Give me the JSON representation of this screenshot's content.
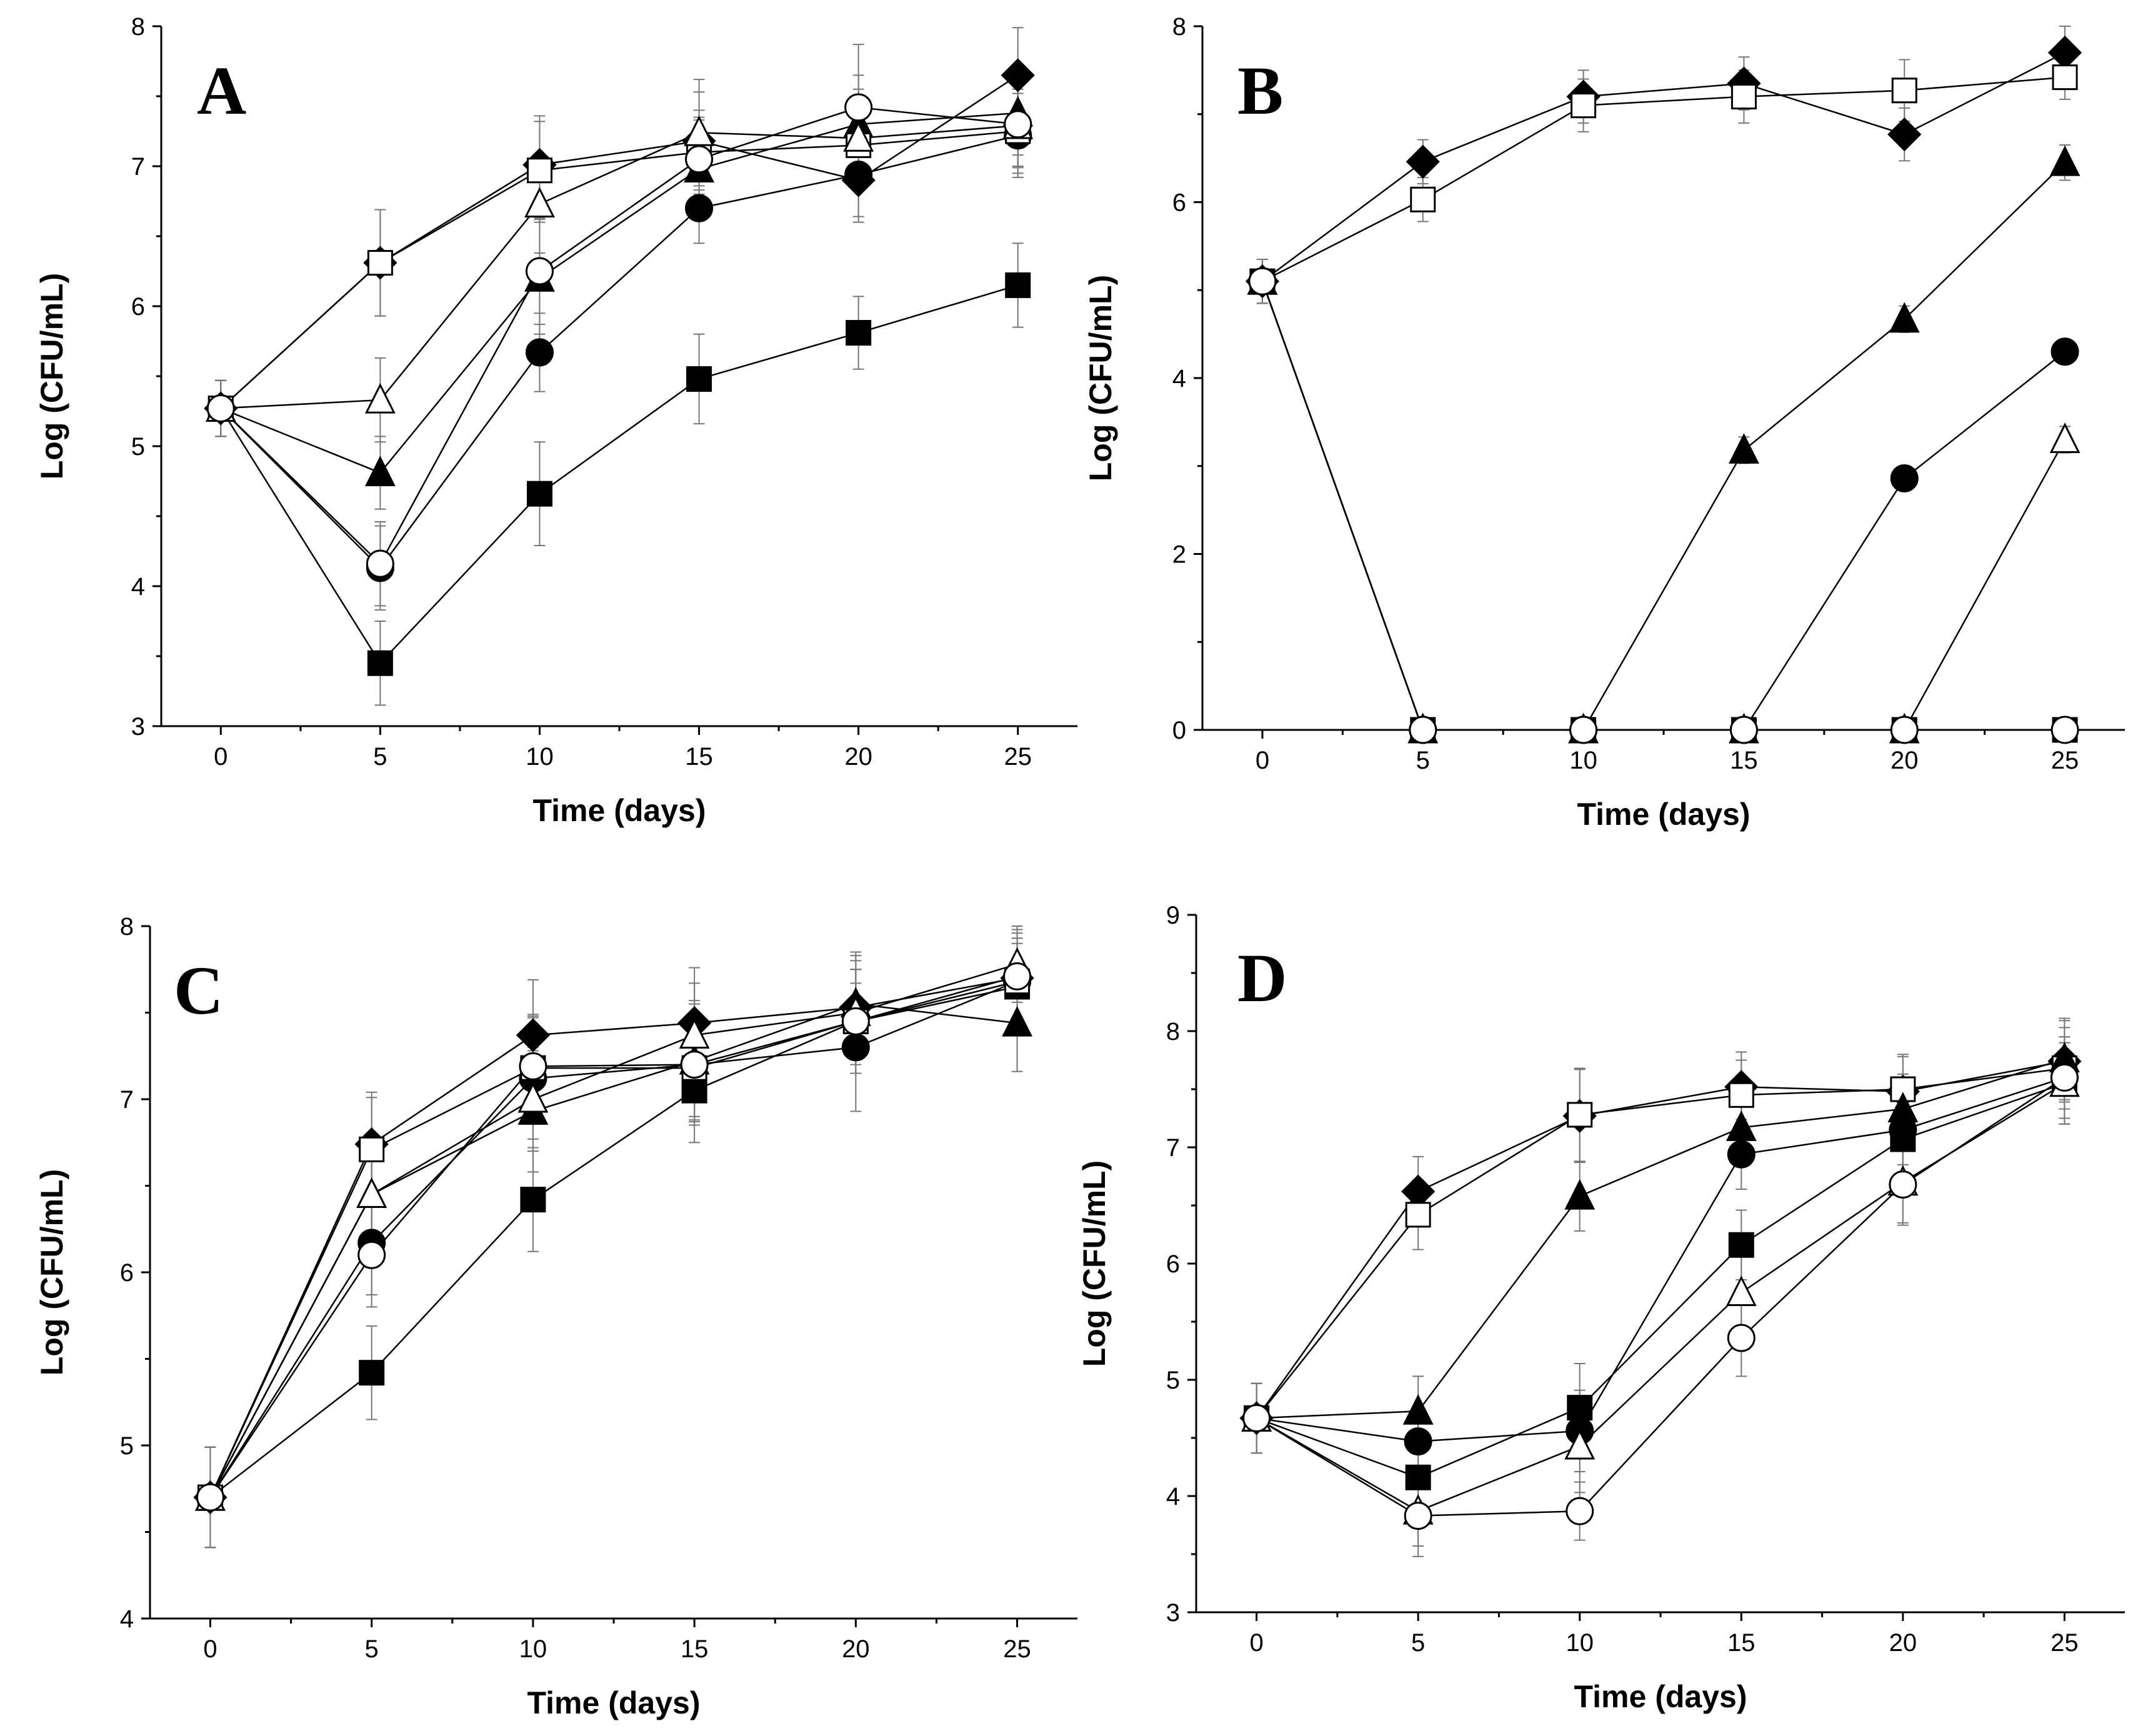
{
  "chart_data": [
    {
      "panel": "A",
      "type": "line",
      "xlabel": "Time (days)",
      "ylabel": "Log (CFU/mL)",
      "xlim": [
        0,
        25
      ],
      "ylim": [
        3,
        8
      ],
      "xticks": [
        0,
        5,
        10,
        15,
        20,
        25
      ],
      "yticks": [
        3,
        4,
        5,
        6,
        7,
        8
      ],
      "x": [
        0,
        5,
        10,
        15,
        20,
        25
      ],
      "series": [
        {
          "marker": "filled-square",
          "values": [
            5.27,
            3.45,
            4.66,
            5.48,
            5.81,
            6.15
          ],
          "errors": [
            0.2,
            0.3,
            0.37,
            0.32,
            0.26,
            0.3
          ]
        },
        {
          "marker": "filled-circle",
          "values": [
            5.27,
            4.13,
            5.67,
            6.7,
            6.94,
            7.22
          ],
          "errors": [
            0.2,
            0.3,
            0.28,
            0.25,
            0.3,
            0.3
          ]
        },
        {
          "marker": "filled-triangle",
          "values": [
            5.27,
            4.81,
            6.2,
            6.98,
            7.3,
            7.38
          ],
          "errors": [
            0.2,
            0.26,
            0.4,
            0.35,
            0.35,
            0.3
          ]
        },
        {
          "marker": "filled-diamond",
          "values": [
            5.27,
            6.31,
            7.01,
            7.18,
            6.9,
            7.65
          ],
          "errors": [
            0.2,
            0.38,
            0.35,
            0.35,
            0.3,
            0.34
          ]
        },
        {
          "marker": "open-square",
          "values": [
            5.27,
            6.31,
            6.97,
            7.1,
            7.15,
            7.25
          ],
          "errors": [
            0.2,
            0.38,
            0.35,
            0.3,
            0.3,
            0.3
          ]
        },
        {
          "marker": "open-triangle",
          "values": [
            5.27,
            5.33,
            6.73,
            7.24,
            7.2,
            7.29
          ],
          "errors": [
            0.2,
            0.3,
            0.35,
            0.38,
            0.35,
            0.3
          ]
        },
        {
          "marker": "open-circle",
          "values": [
            5.27,
            4.16,
            6.25,
            7.05,
            7.42,
            7.3
          ],
          "errors": [
            0.2,
            0.3,
            0.38,
            0.3,
            0.45,
            0.3
          ]
        }
      ]
    },
    {
      "panel": "B",
      "type": "line",
      "xlabel": "Time (days)",
      "ylabel": "Log (CFU/mL)",
      "xlim": [
        0,
        25
      ],
      "ylim": [
        0,
        8
      ],
      "xticks": [
        0,
        5,
        10,
        15,
        20,
        25
      ],
      "yticks": [
        0,
        2,
        4,
        6,
        8
      ],
      "x": [
        0,
        5,
        10,
        15,
        20,
        25
      ],
      "series": [
        {
          "marker": "filled-diamond",
          "values": [
            5.1,
            6.46,
            7.2,
            7.35,
            6.77,
            7.7
          ],
          "errors": [
            0.25,
            0.25,
            0.3,
            0.3,
            0.3,
            0.3
          ]
        },
        {
          "marker": "open-square",
          "values": [
            5.1,
            6.03,
            7.1,
            7.2,
            7.27,
            7.42
          ],
          "errors": [
            0.25,
            0.25,
            0.3,
            0.3,
            0.35,
            0.25
          ]
        },
        {
          "marker": "filled-triangle",
          "values": [
            5.1,
            0,
            0,
            3.18,
            4.67,
            6.45
          ],
          "errors": [
            0.25,
            0,
            0,
            0.15,
            0.15,
            0.2
          ]
        },
        {
          "marker": "filled-circle",
          "values": [
            5.1,
            0,
            0,
            0,
            2.86,
            4.3
          ],
          "errors": [
            0.25,
            0,
            0,
            0,
            0.1,
            0.1
          ]
        },
        {
          "marker": "open-triangle",
          "values": [
            5.1,
            0,
            0,
            0,
            0,
            3.3
          ],
          "errors": [
            0.25,
            0,
            0,
            0,
            0,
            0.15
          ]
        },
        {
          "marker": "filled-square",
          "values": [
            5.1,
            0,
            0,
            0,
            0,
            0
          ],
          "errors": [
            0.25,
            0,
            0,
            0,
            0,
            0
          ]
        },
        {
          "marker": "open-circle",
          "values": [
            5.1,
            0,
            0,
            0,
            0,
            0
          ],
          "errors": [
            0.25,
            0,
            0,
            0,
            0,
            0
          ]
        }
      ]
    },
    {
      "panel": "C",
      "type": "line",
      "xlabel": "Time (days)",
      "ylabel": "Log (CFU/mL)",
      "xlim": [
        0,
        25
      ],
      "ylim": [
        4,
        8
      ],
      "xticks": [
        0,
        5,
        10,
        15,
        20,
        25
      ],
      "yticks": [
        4,
        5,
        6,
        7,
        8
      ],
      "x": [
        0,
        5,
        10,
        15,
        20,
        25
      ],
      "series": [
        {
          "marker": "filled-square",
          "values": [
            4.7,
            5.42,
            6.42,
            7.05,
            7.45,
            7.65
          ],
          "errors": [
            0.29,
            0.27,
            0.3,
            0.3,
            0.3,
            0.25
          ]
        },
        {
          "marker": "filled-circle",
          "values": [
            4.7,
            6.17,
            7.12,
            7.2,
            7.3,
            7.68
          ],
          "errors": [
            0.29,
            0.3,
            0.35,
            0.35,
            0.37,
            0.25
          ]
        },
        {
          "marker": "filled-triangle",
          "values": [
            4.7,
            6.45,
            6.93,
            7.22,
            7.55,
            7.44
          ],
          "errors": [
            0.29,
            0.3,
            0.35,
            0.35,
            0.3,
            0.28
          ]
        },
        {
          "marker": "filled-diamond",
          "values": [
            4.7,
            6.74,
            7.37,
            7.44,
            7.53,
            7.7
          ],
          "errors": [
            0.29,
            0.3,
            0.32,
            0.32,
            0.3,
            0.28
          ]
        },
        {
          "marker": "open-square",
          "values": [
            4.7,
            6.71,
            7.18,
            7.18,
            7.45,
            7.68
          ],
          "errors": [
            0.29,
            0.3,
            0.3,
            0.3,
            0.3,
            0.25
          ]
        },
        {
          "marker": "open-triangle",
          "values": [
            4.7,
            6.45,
            7.0,
            7.37,
            7.5,
            7.78
          ],
          "errors": [
            0.29,
            0.3,
            0.3,
            0.3,
            0.3,
            0.22
          ]
        },
        {
          "marker": "open-circle",
          "values": [
            4.7,
            6.1,
            7.19,
            7.2,
            7.45,
            7.71
          ],
          "errors": [
            0.29,
            0.3,
            0.3,
            0.3,
            0.3,
            0.25
          ]
        }
      ]
    },
    {
      "panel": "D",
      "type": "line",
      "xlabel": "Time (days)",
      "ylabel": "Log (CFU/mL)",
      "xlim": [
        0,
        25
      ],
      "ylim": [
        3,
        9
      ],
      "xticks": [
        0,
        5,
        10,
        15,
        20,
        25
      ],
      "yticks": [
        3,
        4,
        5,
        6,
        7,
        8,
        9
      ],
      "x": [
        0,
        5,
        10,
        15,
        20,
        25
      ],
      "series": [
        {
          "marker": "filled-diamond",
          "values": [
            4.67,
            6.62,
            7.27,
            7.52,
            7.48,
            7.74
          ],
          "errors": [
            0.3,
            0.3,
            0.4,
            0.3,
            0.3,
            0.35
          ]
        },
        {
          "marker": "open-square",
          "values": [
            4.67,
            6.42,
            7.28,
            7.45,
            7.5,
            7.68
          ],
          "errors": [
            0.3,
            0.3,
            0.4,
            0.3,
            0.3,
            0.35
          ]
        },
        {
          "marker": "filled-triangle",
          "values": [
            4.67,
            4.73,
            6.58,
            7.17,
            7.33,
            7.76
          ],
          "errors": [
            0.3,
            0.3,
            0.3,
            0.3,
            0.3,
            0.35
          ]
        },
        {
          "marker": "filled-circle",
          "values": [
            4.67,
            4.47,
            4.56,
            6.94,
            7.15,
            7.6
          ],
          "errors": [
            0.3,
            0.3,
            0.35,
            0.3,
            0.3,
            0.35
          ]
        },
        {
          "marker": "filled-square",
          "values": [
            4.67,
            4.16,
            4.76,
            6.16,
            7.07,
            7.55
          ],
          "errors": [
            0.3,
            0.3,
            0.38,
            0.3,
            0.3,
            0.35
          ]
        },
        {
          "marker": "open-triangle",
          "values": [
            4.67,
            3.87,
            4.43,
            5.75,
            6.7,
            7.55
          ],
          "errors": [
            0.3,
            0.3,
            0.4,
            0.35,
            0.35,
            0.35
          ]
        },
        {
          "marker": "open-circle",
          "values": [
            4.67,
            3.83,
            3.87,
            5.36,
            6.68,
            7.6
          ],
          "errors": [
            0.3,
            0.35,
            0.25,
            0.33,
            0.35,
            0.35
          ]
        }
      ]
    }
  ]
}
